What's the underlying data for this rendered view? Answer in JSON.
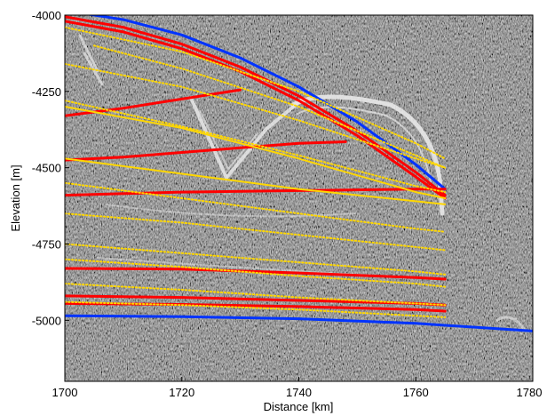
{
  "chart_data": {
    "type": "line",
    "title": "",
    "xlabel": "Distance [km]",
    "ylabel": "Elevation [m]",
    "xlim": [
      1700,
      1780
    ],
    "ylim": [
      -5200,
      -4000
    ],
    "xticks": [
      1700,
      1720,
      1740,
      1760,
      1780
    ],
    "yticks": [
      -4000,
      -4250,
      -4500,
      -4750,
      -5000
    ],
    "background": "radargram",
    "grid": false,
    "legend": "none",
    "series": [
      {
        "color": "#0033ff",
        "style": "solid",
        "x": [
          1700,
          1710,
          1720,
          1730,
          1740,
          1750,
          1760,
          1765
        ],
        "y": [
          -3985,
          -4015,
          -4065,
          -4140,
          -4235,
          -4350,
          -4490,
          -4570
        ]
      },
      {
        "color": "#0033ff",
        "style": "solid",
        "x": [
          1700,
          1720,
          1740,
          1760,
          1780
        ],
        "y": [
          -4985,
          -4988,
          -4995,
          -5010,
          -5035
        ]
      },
      {
        "color": "#ff0000",
        "style": "solid",
        "x": [
          1700,
          1710,
          1720,
          1730,
          1740,
          1750,
          1760,
          1765
        ],
        "y": [
          -4005,
          -4040,
          -4095,
          -4170,
          -4265,
          -4380,
          -4515,
          -4590
        ]
      },
      {
        "color": "#ff0000",
        "style": "solid",
        "x": [
          1700,
          1710,
          1720,
          1730,
          1740,
          1750,
          1760,
          1765
        ],
        "y": [
          -4020,
          -4055,
          -4110,
          -4185,
          -4280,
          -4395,
          -4530,
          -4600
        ]
      },
      {
        "color": "#ff0000",
        "style": "solid",
        "x": [
          1700,
          1710,
          1720,
          1730
        ],
        "y": [
          -4330,
          -4305,
          -4275,
          -4245
        ]
      },
      {
        "color": "#ff0000",
        "style": "solid",
        "x": [
          1700,
          1710,
          1720,
          1730,
          1740,
          1748
        ],
        "y": [
          -4475,
          -4465,
          -4450,
          -4435,
          -4420,
          -4415
        ]
      },
      {
        "color": "#ff0000",
        "style": "solid",
        "x": [
          1700,
          1720,
          1740,
          1760,
          1765
        ],
        "y": [
          -4590,
          -4580,
          -4575,
          -4570,
          -4570
        ]
      },
      {
        "color": "#ff0000",
        "style": "solid",
        "x": [
          1700,
          1720,
          1740,
          1760,
          1765
        ],
        "y": [
          -4830,
          -4832,
          -4845,
          -4860,
          -4865
        ]
      },
      {
        "color": "#ff0000",
        "style": "solid",
        "x": [
          1700,
          1720,
          1740,
          1760,
          1765
        ],
        "y": [
          -4920,
          -4925,
          -4935,
          -4945,
          -4950
        ]
      },
      {
        "color": "#ff0000",
        "style": "solid",
        "x": [
          1700,
          1720,
          1740,
          1760,
          1765
        ],
        "y": [
          -4945,
          -4948,
          -4955,
          -4965,
          -4970
        ]
      },
      {
        "color": "#ffd700",
        "style": "solid",
        "x": [
          1700,
          1720,
          1740,
          1760,
          1765
        ],
        "y": [
          -4300,
          -4370,
          -4470,
          -4580,
          -4600
        ]
      },
      {
        "color": "#ffd700",
        "style": "solid",
        "x": [
          1700,
          1720,
          1740,
          1760,
          1765
        ],
        "y": [
          -4470,
          -4520,
          -4570,
          -4610,
          -4620
        ]
      },
      {
        "color": "#ffd700",
        "style": "dotted",
        "x": [
          1700,
          1720,
          1740,
          1760,
          1765
        ],
        "y": [
          -4040,
          -4120,
          -4250,
          -4420,
          -4470
        ]
      },
      {
        "color": "#ffd700",
        "style": "dotted",
        "x": [
          1705,
          1720,
          1740,
          1760,
          1765
        ],
        "y": [
          -4100,
          -4175,
          -4300,
          -4460,
          -4500
        ]
      },
      {
        "color": "#ffd700",
        "style": "dotted",
        "x": [
          1700,
          1720,
          1740,
          1760,
          1765
        ],
        "y": [
          -4160,
          -4235,
          -4345,
          -4470,
          -4500
        ]
      },
      {
        "color": "#ffd700",
        "style": "dotted",
        "x": [
          1700,
          1720,
          1740,
          1760,
          1765
        ],
        "y": [
          -4280,
          -4365,
          -4460,
          -4560,
          -4580
        ]
      },
      {
        "color": "#ffd700",
        "style": "dotted",
        "x": [
          1700,
          1720,
          1740,
          1760,
          1765
        ],
        "y": [
          -4550,
          -4600,
          -4650,
          -4700,
          -4710
        ]
      },
      {
        "color": "#ffd700",
        "style": "dotted",
        "x": [
          1700,
          1720,
          1740,
          1760,
          1765
        ],
        "y": [
          -4650,
          -4680,
          -4720,
          -4760,
          -4770
        ]
      },
      {
        "color": "#ffd700",
        "style": "dotted",
        "x": [
          1700,
          1720,
          1740,
          1760,
          1765
        ],
        "y": [
          -4750,
          -4780,
          -4810,
          -4840,
          -4850
        ]
      },
      {
        "color": "#ffd700",
        "style": "dotted",
        "x": [
          1700,
          1720,
          1740,
          1760,
          1765
        ],
        "y": [
          -4800,
          -4825,
          -4855,
          -4880,
          -4890
        ]
      },
      {
        "color": "#ffd700",
        "style": "dotted",
        "x": [
          1700,
          1720,
          1740,
          1760,
          1765
        ],
        "y": [
          -4880,
          -4900,
          -4925,
          -4945,
          -4950
        ]
      },
      {
        "color": "#ffd700",
        "style": "dotted",
        "x": [
          1700,
          1720,
          1740,
          1760,
          1765
        ],
        "y": [
          -4940,
          -4950,
          -4965,
          -4985,
          -4990
        ]
      }
    ]
  }
}
